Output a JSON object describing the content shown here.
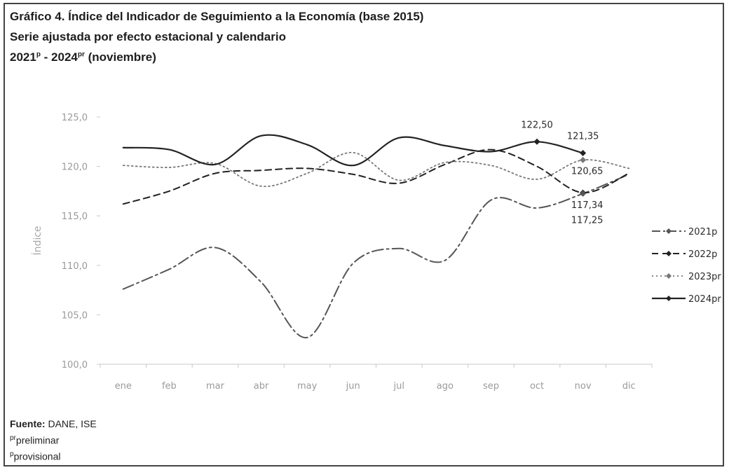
{
  "title": {
    "line1": "Gráfico 4. Índice del Indicador de Seguimiento a la Economía (base 2015)",
    "line2": "Serie ajustada por efecto estacional y calendario",
    "line3_a": "2021",
    "line3_sup_a": "p",
    "line3_b": " - 2024",
    "line3_sup_b": "pr",
    "line3_c": " (noviembre)"
  },
  "footnotes": {
    "source_label": "Fuente:",
    "source_text": " DANE, ISE",
    "pr_mark": "pr",
    "pr_text": "preliminar",
    "p_mark": "p",
    "p_text": "provisional"
  },
  "chart_data": {
    "type": "line",
    "ylabel": "Índice",
    "ylim": [
      100,
      125
    ],
    "y_ticks": [
      "100,0",
      "105,0",
      "110,0",
      "115,0",
      "120,0",
      "125,0"
    ],
    "categories": [
      "ene",
      "feb",
      "mar",
      "abr",
      "may",
      "jun",
      "jul",
      "ago",
      "sep",
      "oct",
      "nov",
      "dic"
    ],
    "legend_position": "right",
    "series": [
      {
        "name": "2021p",
        "style": "dashdot",
        "color": "#555555",
        "values": [
          107.6,
          109.6,
          111.8,
          108.3,
          102.7,
          110.2,
          111.7,
          110.5,
          116.6,
          115.8,
          117.25,
          119.2
        ]
      },
      {
        "name": "2022p",
        "style": "dashed",
        "color": "#222222",
        "values": [
          116.2,
          117.5,
          119.3,
          119.6,
          119.8,
          119.2,
          118.3,
          120.2,
          121.7,
          120.0,
          117.34,
          119.3
        ]
      },
      {
        "name": "2023pr",
        "style": "dotted",
        "color": "#777777",
        "values": [
          120.1,
          119.9,
          120.3,
          118.0,
          119.3,
          121.4,
          118.6,
          120.4,
          120.1,
          118.7,
          120.65,
          119.8
        ]
      },
      {
        "name": "2024pr",
        "style": "solid",
        "color": "#222222",
        "values": [
          121.9,
          121.7,
          120.2,
          123.1,
          122.2,
          120.1,
          122.9,
          122.1,
          121.5,
          122.5,
          121.35,
          null
        ]
      }
    ],
    "data_labels": [
      {
        "series": "2024pr",
        "category": "oct",
        "text": "122,50"
      },
      {
        "series": "2024pr",
        "category": "nov",
        "text": "121,35"
      },
      {
        "series": "2023pr",
        "category": "nov",
        "text": "120,65"
      },
      {
        "series": "2022p",
        "category": "nov",
        "text": "117,34"
      },
      {
        "series": "2021p",
        "category": "nov",
        "text": "117,25"
      }
    ]
  }
}
